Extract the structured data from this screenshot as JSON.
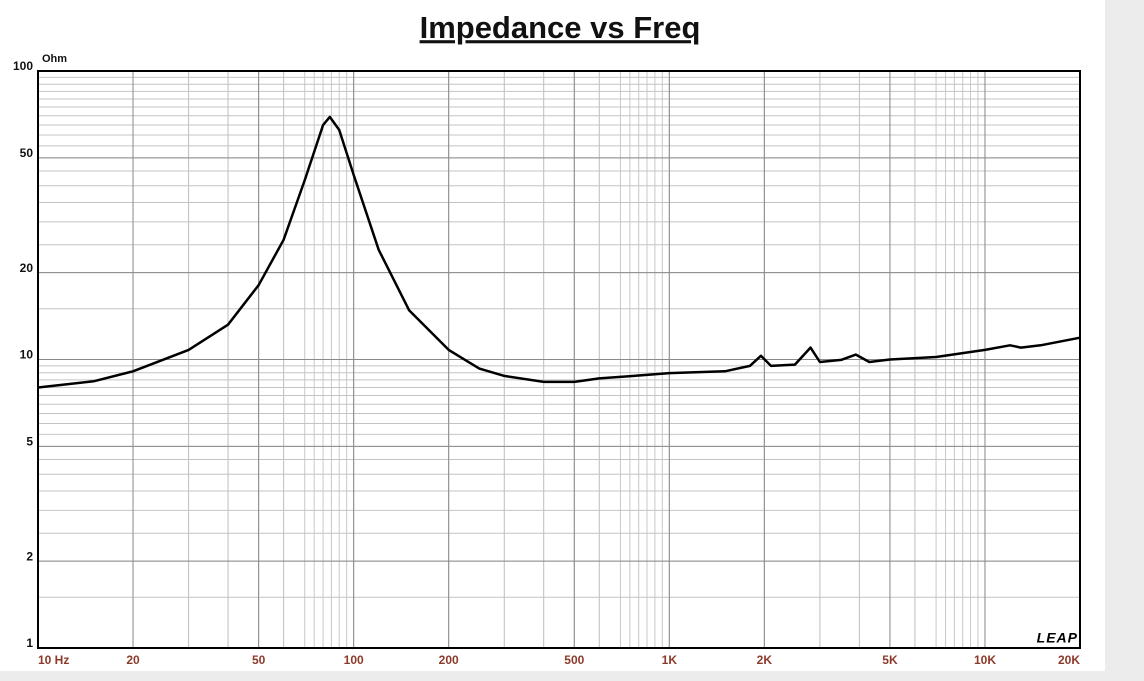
{
  "chart_data": {
    "type": "line",
    "title": "Impedance vs Freq",
    "y_unit": "Ohm",
    "logo": "LEAP",
    "x": [
      10,
      15,
      20,
      30,
      40,
      50,
      60,
      70,
      80,
      84,
      90,
      100,
      120,
      150,
      200,
      250,
      300,
      400,
      500,
      600,
      800,
      1000,
      1500,
      1800,
      1950,
      2100,
      2500,
      2800,
      3000,
      3500,
      3900,
      4300,
      5000,
      7000,
      10000,
      12000,
      13000,
      15000,
      20000
    ],
    "series": [
      {
        "name": "Impedance",
        "color": "#000000",
        "values": [
          8.0,
          8.4,
          9.1,
          10.8,
          13.2,
          18.1,
          26,
          41.9,
          65,
          69.3,
          62.5,
          43.6,
          24,
          14.8,
          10.8,
          9.3,
          8.77,
          8.36,
          8.36,
          8.6,
          8.8,
          8.97,
          9.1,
          9.5,
          10.3,
          9.5,
          9.6,
          11.0,
          9.8,
          9.97,
          10.4,
          9.8,
          10.0,
          10.2,
          10.8,
          11.2,
          11.0,
          11.2,
          11.9
        ]
      }
    ],
    "xlim": [
      10,
      20000
    ],
    "ylim": [
      1,
      100
    ],
    "xscale": "log",
    "yscale": "log",
    "grid": true,
    "minor_grid": true,
    "xticks": [
      {
        "value": 10,
        "label": "10  Hz"
      },
      20,
      50,
      100,
      200,
      500,
      {
        "value": 1000,
        "label": "1K"
      },
      {
        "value": 2000,
        "label": "2K"
      },
      {
        "value": 5000,
        "label": "5K"
      },
      {
        "value": 10000,
        "label": "10K"
      },
      {
        "value": 20000,
        "label": "20K"
      }
    ],
    "yticks": [
      1,
      2,
      5,
      10,
      20,
      50,
      100
    ]
  }
}
